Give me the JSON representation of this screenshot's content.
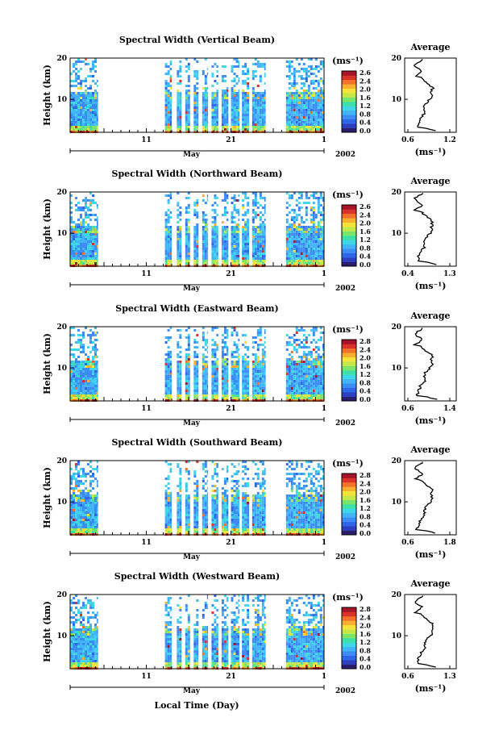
{
  "figure": {
    "xlabel": "Local Time (Day)",
    "unit_label": "(ms⁻¹)",
    "avg_title": "Average",
    "month_label": "May",
    "year_label": "2002",
    "y_label": "Height (km)"
  },
  "chart_data": [
    {
      "type": "heatmap",
      "title": "Spectral Width (Vertical Beam)",
      "x_ticks": [
        "11",
        "21",
        "1"
      ],
      "y_ticks": [
        "20",
        "10"
      ],
      "ylim": [
        2,
        20
      ],
      "colorbar_ticks": [
        "2.6",
        "2.4",
        "2.0",
        "1.6",
        "1.2",
        "0.8",
        "0.4",
        "0.0"
      ],
      "avg_x_ticks": [
        "0.6",
        "1.2"
      ],
      "avg_profile_seed": 1
    },
    {
      "type": "heatmap",
      "title": "Spectral Width (Northward Beam)",
      "x_ticks": [
        "11",
        "21",
        "1"
      ],
      "y_ticks": [
        "20",
        "10"
      ],
      "ylim": [
        2,
        20
      ],
      "colorbar_ticks": [
        "2.6",
        "2.4",
        "2.0",
        "1.6",
        "1.2",
        "0.8",
        "0.4",
        "0.0"
      ],
      "avg_x_ticks": [
        "0.4",
        "1.3"
      ],
      "avg_profile_seed": 2
    },
    {
      "type": "heatmap",
      "title": "Spectral Width (Eastward Beam)",
      "x_ticks": [
        "11",
        "21",
        "1"
      ],
      "y_ticks": [
        "20",
        "10"
      ],
      "ylim": [
        2,
        20
      ],
      "colorbar_ticks": [
        "2.8",
        "2.4",
        "2.0",
        "1.6",
        "1.2",
        "0.8",
        "0.4",
        "0.0"
      ],
      "avg_x_ticks": [
        "0.6",
        "1.4"
      ],
      "avg_profile_seed": 3
    },
    {
      "type": "heatmap",
      "title": "Spectral Width (Southward Beam)",
      "x_ticks": [
        "11",
        "21",
        "1"
      ],
      "y_ticks": [
        "20",
        "10"
      ],
      "ylim": [
        2,
        20
      ],
      "colorbar_ticks": [
        "2.8",
        "2.4",
        "2.0",
        "1.6",
        "1.2",
        "0.8",
        "0.4",
        "0.0"
      ],
      "avg_x_ticks": [
        "0.6",
        "1.8"
      ],
      "avg_profile_seed": 4
    },
    {
      "type": "heatmap",
      "title": "Spectral Width (Westward Beam)",
      "x_ticks": [
        "11",
        "21",
        "1"
      ],
      "y_ticks": [
        "20",
        "10"
      ],
      "ylim": [
        2,
        20
      ],
      "colorbar_ticks": [
        "2.8",
        "2.4",
        "2.0",
        "1.6",
        "1.2",
        "0.8",
        "0.4",
        "0.0"
      ],
      "avg_x_ticks": [
        "0.6",
        "1.3"
      ],
      "avg_profile_seed": 5
    }
  ]
}
